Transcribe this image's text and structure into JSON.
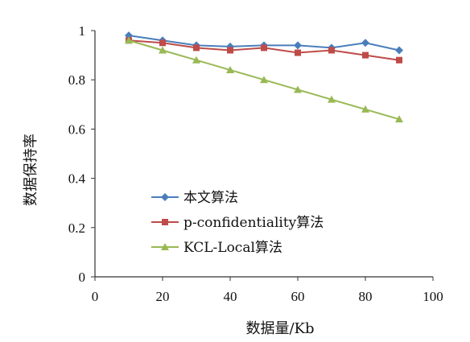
{
  "chart_data": {
    "type": "line",
    "title": "",
    "xlabel": "数据量/Kb",
    "ylabel": "数据保持率",
    "xlim": [
      0,
      100
    ],
    "ylim": [
      0,
      1
    ],
    "xticks": [
      0,
      20,
      40,
      60,
      80,
      100
    ],
    "yticks": [
      0,
      0.2,
      0.4,
      0.6,
      0.8,
      1
    ],
    "xtick_labels": [
      "0",
      "20",
      "40",
      "60",
      "80",
      "100"
    ],
    "ytick_labels": [
      "0",
      "0.2",
      "0.4",
      "0.6",
      "0.8",
      "1"
    ],
    "grid": false,
    "legend_position": "lower-left",
    "x": [
      10,
      20,
      30,
      40,
      50,
      60,
      70,
      80,
      90
    ],
    "series": [
      {
        "name": "本文算法",
        "color": "#4a7ebb",
        "marker": "diamond",
        "values": [
          0.98,
          0.96,
          0.94,
          0.935,
          0.94,
          0.94,
          0.93,
          0.95,
          0.92
        ]
      },
      {
        "name": "p-confidentiality算法",
        "color": "#be4b48",
        "marker": "square",
        "values": [
          0.96,
          0.95,
          0.93,
          0.92,
          0.93,
          0.91,
          0.92,
          0.9,
          0.88
        ]
      },
      {
        "name": "KCL-Local算法",
        "color": "#98b954",
        "marker": "triangle",
        "values": [
          0.96,
          0.92,
          0.88,
          0.84,
          0.8,
          0.76,
          0.72,
          0.68,
          0.64
        ]
      }
    ]
  }
}
